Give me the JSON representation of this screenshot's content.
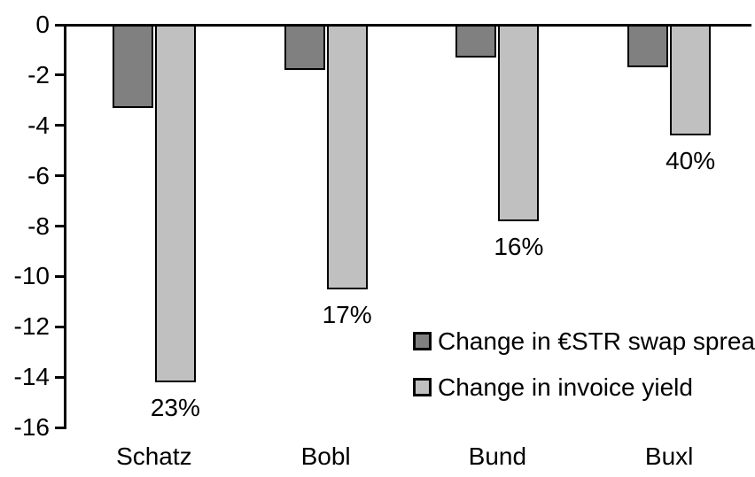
{
  "chart_data": {
    "type": "bar",
    "title": "",
    "xlabel": "",
    "ylabel": "",
    "categories": [
      "Schatz",
      "Bobl",
      "Bund",
      "Buxl"
    ],
    "series": [
      {
        "name": "Change in €STR swap spread",
        "color": "#808080",
        "values": [
          -3.3,
          -1.8,
          -1.3,
          -1.7
        ]
      },
      {
        "name": "Change in invoice yield",
        "color": "#c0c0c0",
        "values": [
          -14.2,
          -10.5,
          -7.8,
          -4.4
        ]
      }
    ],
    "bar_labels": {
      "series_index": 1,
      "values": [
        "23%",
        "17%",
        "16%",
        "40%"
      ]
    },
    "yticks": [
      "0",
      "-2",
      "-4",
      "-6",
      "-8",
      "-10",
      "-12",
      "-14",
      "-16"
    ],
    "ytick_values": [
      0,
      -2,
      -4,
      -6,
      -8,
      -10,
      -12,
      -14,
      -16
    ],
    "ylim": [
      -16,
      0
    ],
    "grid": false,
    "legend_position": "inside-right-middle",
    "colors": {
      "axis": "#000000",
      "text": "#000000",
      "background": "#ffffff",
      "bar_border": "#000000"
    }
  }
}
